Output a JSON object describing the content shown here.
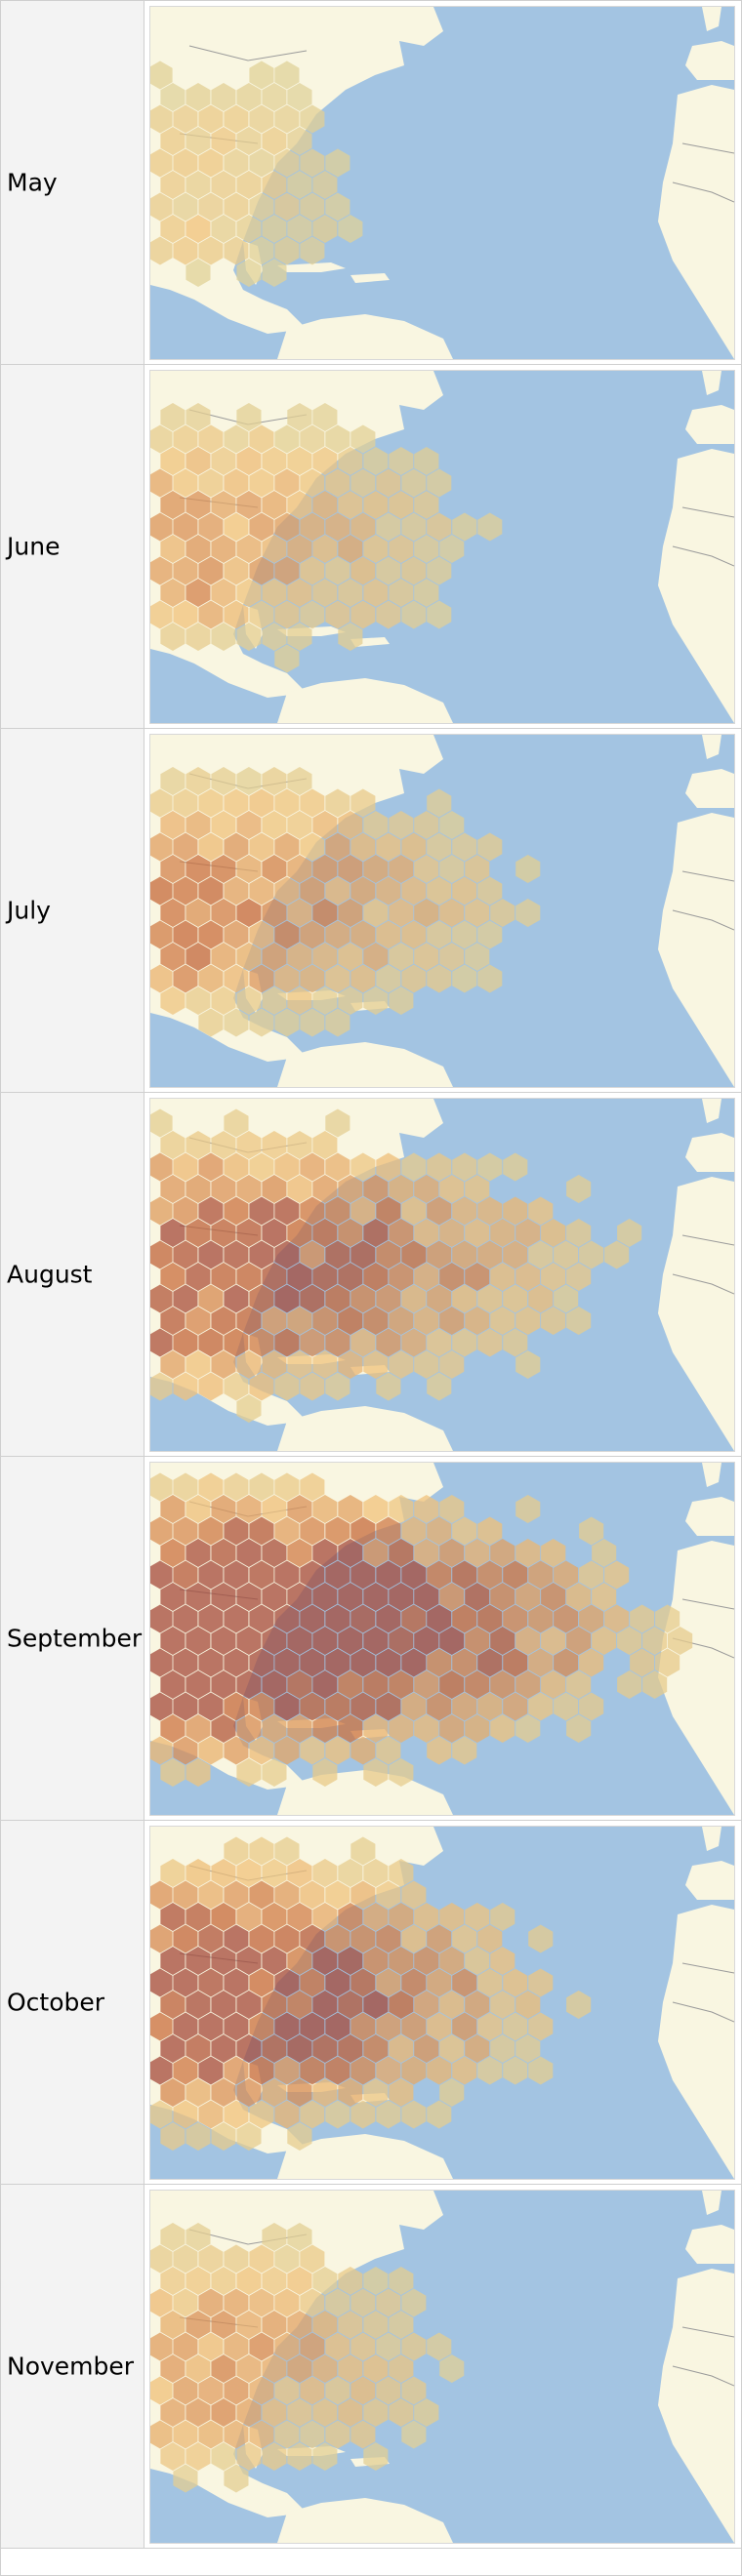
{
  "months": [
    {
      "label": "May",
      "intensity": 0.12,
      "extent": 0.45
    },
    {
      "label": "June",
      "intensity": 0.35,
      "extent": 0.7
    },
    {
      "label": "July",
      "intensity": 0.45,
      "extent": 0.8
    },
    {
      "label": "August",
      "intensity": 0.65,
      "extent": 0.95
    },
    {
      "label": "September",
      "intensity": 0.95,
      "extent": 1.0
    },
    {
      "label": "October",
      "intensity": 0.75,
      "extent": 0.8
    },
    {
      "label": "November",
      "intensity": 0.35,
      "extent": 0.65
    }
  ],
  "colors": {
    "ocean": "#a3c4e2",
    "land": "#f9f6e1",
    "border": "#9a9a9a",
    "low": "#d8d8a5",
    "mid": "#f0c27a",
    "high": "#c86b3a",
    "max": "#a44a3a"
  }
}
